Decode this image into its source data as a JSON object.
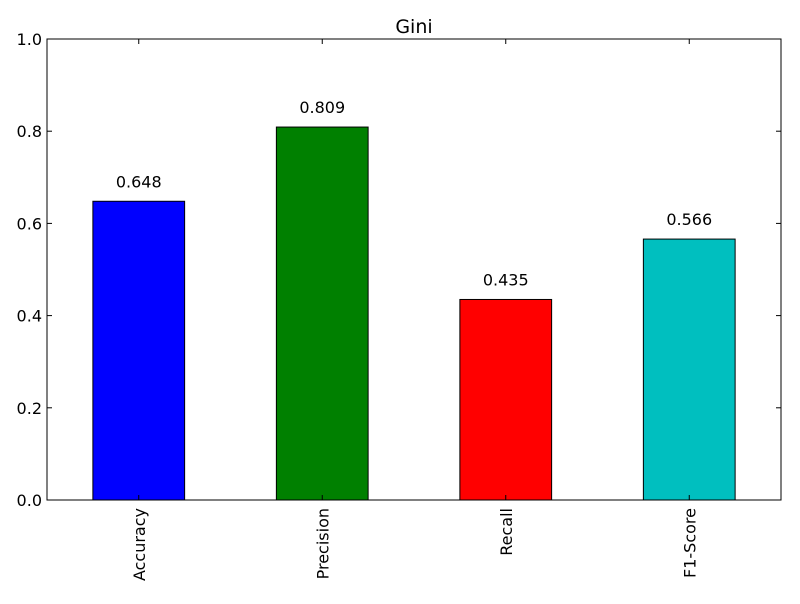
{
  "chart_data": {
    "type": "bar",
    "title": "Gini",
    "xlabel": "",
    "ylabel": "",
    "categories": [
      "Accuracy",
      "Precision",
      "Recall",
      "F1-Score"
    ],
    "values": [
      0.648,
      0.809,
      0.435,
      0.566
    ],
    "value_labels": [
      "0.648",
      "0.809",
      "0.435",
      "0.566"
    ],
    "colors": [
      "#0000ff",
      "#008000",
      "#ff0000",
      "#00bfbf"
    ],
    "ylim": [
      0,
      1.0
    ],
    "yticks": [
      0.0,
      0.2,
      0.4,
      0.6,
      0.8,
      1.0
    ],
    "ytick_labels": [
      "0.0",
      "0.2",
      "0.4",
      "0.6",
      "0.8",
      "1.0"
    ],
    "xtick_rotation": "vertical",
    "grid": false,
    "legend": "none"
  }
}
